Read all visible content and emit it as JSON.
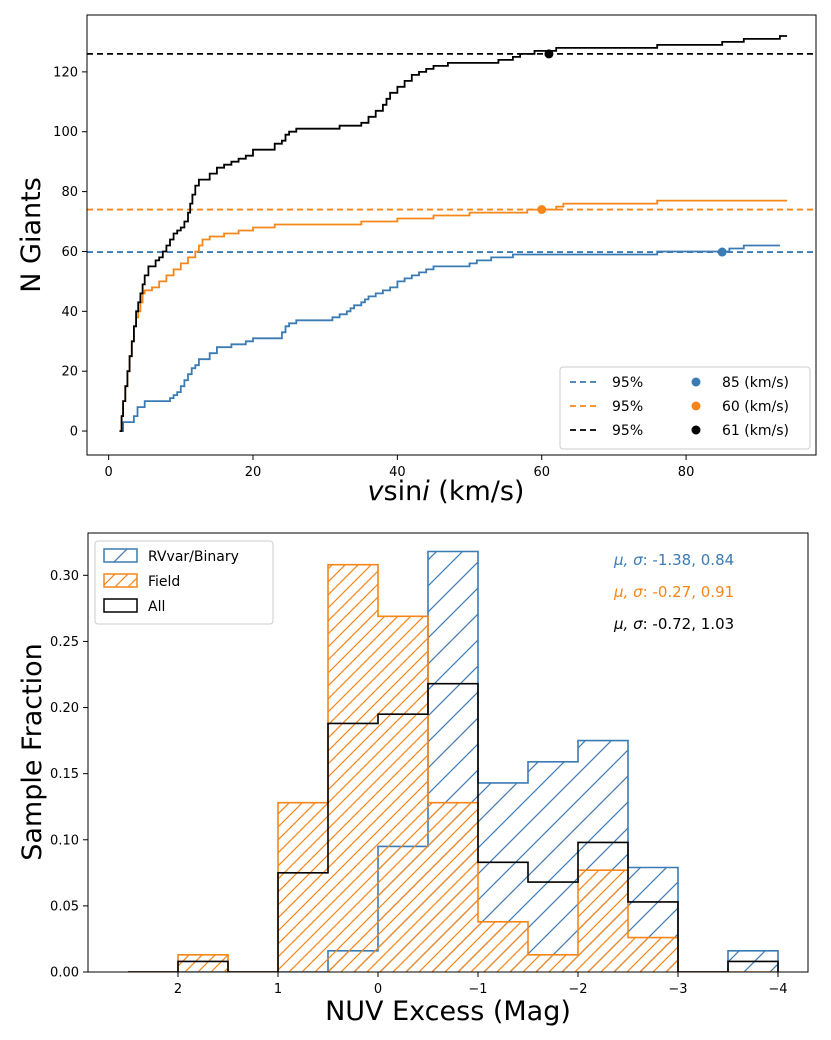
{
  "chart_data": [
    {
      "type": "line",
      "title": "",
      "xlabel_prefix": "v",
      "xlabel_mid": "sin",
      "xlabel_italic": "i",
      "xlabel_suffix": " (km/s)",
      "ylabel": "N Giants",
      "xlim": [
        -3,
        98
      ],
      "ylim": [
        -8,
        139
      ],
      "xticks": [
        0,
        20,
        40,
        60,
        80
      ],
      "yticks": [
        0,
        20,
        40,
        60,
        80,
        100,
        120
      ],
      "series": [
        {
          "name": "blue",
          "color": "#3b7bb4",
          "hline": 59.8,
          "hline_label": "95%",
          "marker": [
            85,
            59.8
          ],
          "marker_label": "85 (km/s)",
          "points": [
            [
              1.5,
              0
            ],
            [
              2,
              3
            ],
            [
              3,
              3
            ],
            [
              3.5,
              5
            ],
            [
              4,
              8
            ],
            [
              5,
              10
            ],
            [
              8,
              10
            ],
            [
              8.5,
              11
            ],
            [
              9,
              12
            ],
            [
              9.5,
              13
            ],
            [
              10,
              15
            ],
            [
              10.5,
              17
            ],
            [
              11,
              19
            ],
            [
              11.5,
              21
            ],
            [
              12,
              22
            ],
            [
              12.5,
              24
            ],
            [
              14,
              26
            ],
            [
              15,
              28
            ],
            [
              17,
              29
            ],
            [
              19,
              30
            ],
            [
              20,
              31
            ],
            [
              24,
              33
            ],
            [
              24.5,
              35
            ],
            [
              25,
              36
            ],
            [
              26,
              37
            ],
            [
              31,
              38
            ],
            [
              32,
              39
            ],
            [
              33,
              40
            ],
            [
              33.5,
              41
            ],
            [
              34,
              42
            ],
            [
              35,
              43
            ],
            [
              35.5,
              44
            ],
            [
              36,
              45
            ],
            [
              37,
              46
            ],
            [
              38,
              47
            ],
            [
              39,
              48
            ],
            [
              40,
              50
            ],
            [
              41,
              51
            ],
            [
              42,
              52
            ],
            [
              43,
              53
            ],
            [
              44,
              54
            ],
            [
              45,
              55
            ],
            [
              50,
              56
            ],
            [
              51,
              57
            ],
            [
              53,
              58
            ],
            [
              56,
              59
            ],
            [
              76,
              60
            ],
            [
              86,
              61
            ],
            [
              88,
              62
            ],
            [
              93,
              62
            ]
          ]
        },
        {
          "name": "orange",
          "color": "#f7861a",
          "hline": 74,
          "hline_label": "95%",
          "marker": [
            60,
            74
          ],
          "marker_label": "60 (km/s)",
          "points": [
            [
              1.5,
              0
            ],
            [
              1.8,
              5
            ],
            [
              2,
              10
            ],
            [
              2.3,
              15
            ],
            [
              2.6,
              20
            ],
            [
              2.9,
              25
            ],
            [
              3.2,
              30
            ],
            [
              3.5,
              35
            ],
            [
              3.8,
              38
            ],
            [
              4.1,
              40
            ],
            [
              4.4,
              43
            ],
            [
              4.7,
              46
            ],
            [
              5,
              47
            ],
            [
              6,
              48
            ],
            [
              7,
              50
            ],
            [
              8,
              52
            ],
            [
              9,
              54
            ],
            [
              10,
              56
            ],
            [
              11,
              58
            ],
            [
              12,
              60
            ],
            [
              12.5,
              62
            ],
            [
              13,
              64
            ],
            [
              14,
              65
            ],
            [
              16,
              66
            ],
            [
              18,
              67
            ],
            [
              20,
              68
            ],
            [
              23,
              69
            ],
            [
              35,
              70
            ],
            [
              40,
              71
            ],
            [
              45,
              72
            ],
            [
              50,
              73
            ],
            [
              58,
              74
            ],
            [
              62,
              75
            ],
            [
              63,
              76
            ],
            [
              76,
              77
            ],
            [
              94,
              77
            ]
          ]
        },
        {
          "name": "black",
          "color": "#000000",
          "hline": 126,
          "hline_label": "95%",
          "marker": [
            61,
            126
          ],
          "marker_label": "61 (km/s)",
          "points": [
            [
              1.5,
              0
            ],
            [
              1.8,
              5
            ],
            [
              2,
              10
            ],
            [
              2.3,
              15
            ],
            [
              2.6,
              20
            ],
            [
              2.9,
              25
            ],
            [
              3.2,
              30
            ],
            [
              3.5,
              35
            ],
            [
              3.8,
              40
            ],
            [
              4.1,
              43
            ],
            [
              4.4,
              46
            ],
            [
              4.7,
              49
            ],
            [
              5,
              52
            ],
            [
              5.5,
              55
            ],
            [
              6.5,
              57
            ],
            [
              7,
              58
            ],
            [
              7.5,
              60
            ],
            [
              8,
              62
            ],
            [
              8.5,
              64
            ],
            [
              9,
              66
            ],
            [
              9.5,
              67
            ],
            [
              10,
              68
            ],
            [
              10.5,
              70
            ],
            [
              11,
              73
            ],
            [
              11.3,
              76
            ],
            [
              11.6,
              79
            ],
            [
              12,
              82
            ],
            [
              12.5,
              84
            ],
            [
              14,
              86
            ],
            [
              15,
              88
            ],
            [
              16,
              89
            ],
            [
              17,
              90
            ],
            [
              18,
              91
            ],
            [
              19,
              92
            ],
            [
              20,
              94
            ],
            [
              23,
              96
            ],
            [
              24,
              97
            ],
            [
              24.5,
              99
            ],
            [
              25,
              100
            ],
            [
              26,
              101
            ],
            [
              32,
              102
            ],
            [
              35,
              103
            ],
            [
              36,
              105
            ],
            [
              37,
              107
            ],
            [
              38,
              109
            ],
            [
              38.5,
              111
            ],
            [
              39,
              113
            ],
            [
              40,
              115
            ],
            [
              41,
              117
            ],
            [
              42,
              119
            ],
            [
              43,
              120
            ],
            [
              44,
              121
            ],
            [
              45,
              122
            ],
            [
              47,
              123
            ],
            [
              54,
              124
            ],
            [
              56,
              125
            ],
            [
              57,
              126
            ],
            [
              59,
              127
            ],
            [
              62,
              128
            ],
            [
              76,
              129
            ],
            [
              85,
              130
            ],
            [
              88,
              131
            ],
            [
              93,
              132
            ],
            [
              94,
              132
            ]
          ]
        }
      ],
      "legend_position": "lower right"
    },
    {
      "type": "histogram",
      "title": "",
      "xlabel": "NUV Excess (Mag)",
      "ylabel": "Sample Fraction",
      "xlim": [
        2.9,
        -4.3
      ],
      "ylim": [
        0,
        0.332
      ],
      "xtick_values": [
        2,
        1,
        0,
        -1,
        -2,
        -3,
        -4
      ],
      "xtick_labels": [
        "2",
        "1",
        "0",
        "−1",
        "−2",
        "−3",
        "−4"
      ],
      "ytick_values": [
        0,
        0.05,
        0.1,
        0.15,
        0.2,
        0.25,
        0.3
      ],
      "ytick_labels": [
        "0.00",
        "0.05",
        "0.10",
        "0.15",
        "0.20",
        "0.25",
        "0.30"
      ],
      "bin_edges": [
        2.5,
        2.0,
        1.5,
        1.0,
        0.5,
        0.0,
        -0.5,
        -1.0,
        -1.5,
        -2.0,
        -2.5,
        -3.0,
        -3.5,
        -4.0
      ],
      "series": [
        {
          "name": "RVvar/Binary",
          "color": "#3b7bb4",
          "hatch": "backslash",
          "values": [
            0,
            0,
            0,
            0,
            0.016,
            0.095,
            0.318,
            0.143,
            0.159,
            0.175,
            0.079,
            0,
            0.016
          ]
        },
        {
          "name": "Field",
          "color": "#f7861a",
          "hatch": "slash",
          "values": [
            0,
            0.013,
            0,
            0.128,
            0.308,
            0.269,
            0.128,
            0.038,
            0.013,
            0.077,
            0.026,
            0,
            0
          ]
        },
        {
          "name": "All",
          "color": "#000000",
          "hatch": "none",
          "values": [
            0,
            0.008,
            0,
            0.075,
            0.188,
            0.195,
            0.218,
            0.083,
            0.068,
            0.098,
            0.053,
            0,
            0.008
          ]
        }
      ],
      "legend_position": "upper left",
      "stats": [
        {
          "label": "μ, σ",
          "value": ": -1.38, 0.84",
          "color": "#3b7bb4"
        },
        {
          "label": "μ, σ",
          "value": ": -0.27, 0.91",
          "color": "#f7861a"
        },
        {
          "label": "μ, σ",
          "value": ": -0.72, 1.03",
          "color": "#000000"
        }
      ]
    }
  ]
}
